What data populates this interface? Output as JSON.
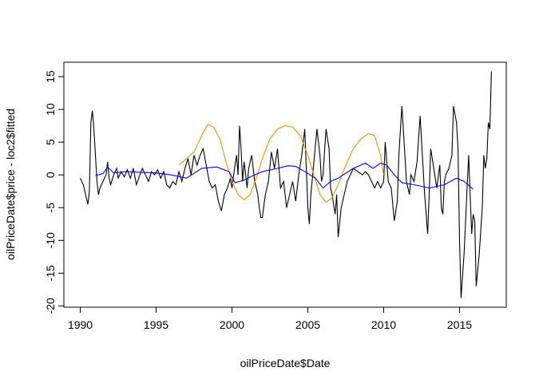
{
  "chart_data": {
    "type": "line",
    "x_label": "oilPriceDate$Date",
    "y_label": "oilPriceDate$price - loc2$fitted",
    "xlim": [
      1988.92,
      2018.08
    ],
    "xticks": [
      1990,
      1995,
      2000,
      2005,
      2010,
      2015
    ],
    "ylim": [
      -20.2,
      17.2
    ],
    "yticks": [
      -20,
      -15,
      -10,
      -5,
      0,
      5,
      10,
      15
    ],
    "series": [
      {
        "color": "#000000",
        "x": [
          1990.0,
          1990.2,
          1990.4,
          1990.5,
          1990.6,
          1990.7,
          1990.8,
          1990.9,
          1991.0,
          1991.1,
          1991.2,
          1991.3,
          1991.5,
          1991.7,
          1991.8,
          1991.9,
          1992.0,
          1992.2,
          1992.4,
          1992.5,
          1992.7,
          1992.9,
          1993.1,
          1993.3,
          1993.5,
          1993.7,
          1993.9,
          1994.1,
          1994.3,
          1994.5,
          1994.7,
          1994.9,
          1995.1,
          1995.3,
          1995.5,
          1995.7,
          1995.9,
          1996.1,
          1996.3,
          1996.5,
          1996.7,
          1996.9,
          1997.1,
          1997.3,
          1997.5,
          1997.7,
          1997.9,
          1998.1,
          1998.3,
          1998.5,
          1998.7,
          1998.9,
          1999.1,
          1999.3,
          1999.5,
          1999.7,
          1999.9,
          2000.0,
          2000.2,
          2000.3,
          2000.4,
          2000.5,
          2000.6,
          2000.7,
          2000.8,
          2001.0,
          2001.1,
          2001.3,
          2001.5,
          2001.7,
          2001.8,
          2001.9,
          2002.0,
          2002.2,
          2002.4,
          2002.6,
          2002.8,
          2003.0,
          2003.2,
          2003.4,
          2003.6,
          2003.8,
          2004.0,
          2004.2,
          2004.4,
          2004.6,
          2004.8,
          2004.9,
          2005.0,
          2005.1,
          2005.2,
          2005.4,
          2005.6,
          2005.8,
          2005.9,
          2006.0,
          2006.2,
          2006.4,
          2006.5,
          2006.6,
          2006.8,
          2006.9,
          2007.0,
          2007.2,
          2007.4,
          2007.6,
          2007.8,
          2008.0,
          2008.3,
          2008.6,
          2008.8,
          2009.0,
          2009.2,
          2009.4,
          2009.6,
          2009.8,
          2010.0,
          2010.1,
          2010.2,
          2010.3,
          2010.5,
          2010.7,
          2010.9,
          2011.0,
          2011.2,
          2011.4,
          2011.5,
          2011.7,
          2011.8,
          2012.0,
          2012.2,
          2012.4,
          2012.6,
          2012.7,
          2012.9,
          2013.0,
          2013.1,
          2013.3,
          2013.5,
          2013.7,
          2013.8,
          2013.9,
          2014.0,
          2014.1,
          2014.3,
          2014.5,
          2014.6,
          2014.8,
          2014.9,
          2015.0,
          2015.1,
          2015.3,
          2015.5,
          2015.6,
          2015.8,
          2015.9,
          2016.0,
          2016.1,
          2016.3,
          2016.5,
          2016.6,
          2016.7,
          2016.8,
          2016.9,
          2017.0,
          2017.1
        ],
        "values": [
          -0.5,
          -1.5,
          -3.5,
          -4.5,
          -2.5,
          8,
          9.8,
          7,
          3,
          -1,
          -3,
          -2,
          -1,
          0,
          2,
          -0.5,
          -1.5,
          0,
          1,
          -0.5,
          0.5,
          -0.3,
          0.8,
          -0.5,
          1,
          -1.5,
          -0.2,
          1,
          0,
          -1,
          0.5,
          0,
          0.8,
          -0.5,
          0.5,
          -1.5,
          -2,
          -1,
          -1.5,
          0.5,
          -1,
          1,
          2.5,
          0,
          3,
          1.5,
          3,
          4,
          1.5,
          -1,
          -2,
          -1.5,
          -4,
          -5.5,
          -3,
          -2,
          -0.5,
          -2,
          1.5,
          3,
          0,
          7.5,
          4,
          -1,
          2,
          -2,
          1,
          3,
          -1,
          -3,
          -5,
          -6.5,
          -6.5,
          -3,
          -1,
          3.5,
          1,
          4,
          -2,
          -1,
          -5,
          -3,
          -1,
          -4,
          0,
          3,
          7,
          1,
          -5,
          -7.5,
          -3,
          2,
          7,
          3,
          -1,
          0,
          7,
          4,
          -2,
          -3,
          -6,
          -3,
          -9.5,
          -5,
          -3,
          -1,
          0,
          1,
          0.5,
          0,
          0.5,
          0,
          -1,
          -2,
          -1,
          -2,
          -1,
          5,
          2,
          -1,
          -2,
          -7,
          -4,
          3,
          10.5,
          3,
          -1,
          -3,
          0,
          -1,
          2,
          9,
          1,
          -3,
          -9,
          -3,
          4,
          1,
          -2,
          1.5,
          -5,
          -6,
          -1,
          0,
          1,
          3,
          10.5,
          8,
          4,
          -10,
          -18.8,
          -12,
          -2,
          3,
          -9,
          -6,
          -7,
          -17,
          -12,
          -5,
          3,
          1,
          2.5,
          8,
          7,
          15.8
        ]
      },
      {
        "color": "#ff8c00",
        "x": [
          1996.5,
          1997.0,
          1997.5,
          1998.0,
          1998.4,
          1998.8,
          1999.2,
          1999.6,
          2000.0,
          2000.4,
          2000.8,
          2001.2,
          2001.6,
          2002.0,
          2002.5,
          2003.0,
          2003.5,
          2004.0,
          2004.5,
          2005.0,
          2005.4,
          2005.8,
          2006.2,
          2006.6,
          2007.0,
          2007.5,
          2008.0,
          2008.5,
          2009.0,
          2009.4,
          2009.8,
          2010.0
        ],
        "values": [
          1.5,
          2.5,
          3.5,
          6,
          7.7,
          7.3,
          5.5,
          2,
          -1,
          -3,
          -3.8,
          -3,
          -0.5,
          2.5,
          5.5,
          7,
          7.5,
          7.3,
          6,
          3,
          0,
          -3,
          -4.2,
          -3.5,
          -1.5,
          1.5,
          4,
          5.5,
          6.3,
          6,
          3,
          0
        ]
      },
      {
        "color": "#0000ff",
        "x": [
          1991,
          1991.5,
          1991.8,
          1992.2,
          1993,
          1994,
          1995,
          1996,
          1997,
          1998,
          1999,
          1999.8,
          2000.2,
          2000.8,
          2001.3,
          2002,
          2003,
          2003.7,
          2004.2,
          2004.8,
          2005.5,
          2006,
          2006.5,
          2007,
          2008,
          2008.8,
          2009.3,
          2009.8,
          2010.2,
          2010.7,
          2011.2,
          2012,
          2013,
          2014,
          2014.8,
          2015.3,
          2015.9
        ],
        "values": [
          -0.1,
          0.2,
          1.2,
          0.3,
          0.5,
          0.4,
          0.3,
          0,
          -0.5,
          1,
          1.2,
          0.5,
          -1.2,
          -0.8,
          -0.2,
          0.5,
          1,
          1.4,
          1.3,
          0.5,
          -0.5,
          -2,
          -1,
          -0.5,
          1,
          1.8,
          1,
          1.8,
          1.5,
          0,
          -1.2,
          -1.5,
          -2,
          -1.5,
          -0.5,
          -1,
          -2.2
        ]
      }
    ]
  }
}
